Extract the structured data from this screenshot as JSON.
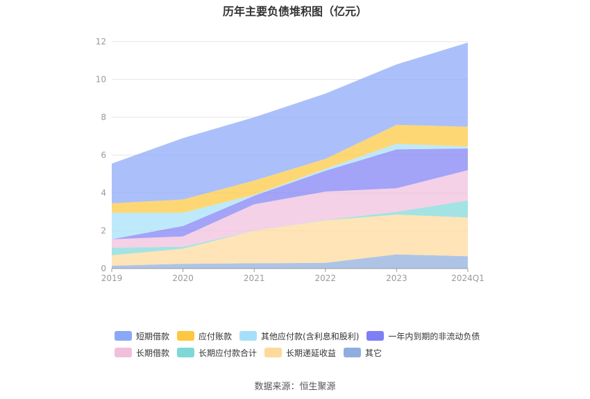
{
  "title": "历年主要负债堆积图（亿元）",
  "source": "数据来源：恒生聚源",
  "chart_data": {
    "type": "area",
    "stacked": true,
    "title": "历年主要负债堆积图（亿元）",
    "xlabel": "",
    "ylabel": "",
    "categories": [
      "2019",
      "2020",
      "2021",
      "2022",
      "2023",
      "2024Q1"
    ],
    "ylim": [
      0,
      12
    ],
    "yticks": [
      "0",
      "2",
      "4",
      "6",
      "8",
      "10",
      "12"
    ],
    "grid": true,
    "legend_position": "bottom",
    "series": [
      {
        "name": "其它",
        "color": "#8fadde",
        "values": [
          0.15,
          0.25,
          0.28,
          0.3,
          0.75,
          0.65
        ]
      },
      {
        "name": "长期递延收益",
        "color": "#fdd99b",
        "values": [
          0.55,
          0.8,
          1.72,
          2.25,
          2.1,
          2.05
        ]
      },
      {
        "name": "长期应付款合计",
        "color": "#7fd8d8",
        "values": [
          0.4,
          0.1,
          0.0,
          0.02,
          0.15,
          0.9
        ]
      },
      {
        "name": "长期借款",
        "color": "#f0bfdc",
        "values": [
          0.45,
          0.55,
          1.4,
          1.5,
          1.25,
          1.6
        ]
      },
      {
        "name": "一年内到期的非流动负债",
        "color": "#7f7ff5",
        "values": [
          0.0,
          0.55,
          0.45,
          1.1,
          2.05,
          1.15
        ]
      },
      {
        "name": "其他应付款(含利息和股利)",
        "color": "#a5e0fa",
        "values": [
          1.4,
          0.7,
          0.05,
          0.1,
          0.3,
          0.1
        ]
      },
      {
        "name": "应付账款",
        "color": "#fdc740",
        "values": [
          0.5,
          0.7,
          0.75,
          0.53,
          1.0,
          1.05
        ]
      },
      {
        "name": "短期借款",
        "color": "#8aa8f8",
        "values": [
          2.1,
          3.25,
          3.35,
          3.45,
          3.2,
          4.45
        ]
      }
    ]
  },
  "legend_rows": [
    [
      {
        "label": "短期借款",
        "color": "#8aa8f8"
      },
      {
        "label": "应付账款",
        "color": "#fdc740"
      },
      {
        "label": "其他应付款(含利息和股利)",
        "color": "#a5e0fa"
      },
      {
        "label": "一年内到期的非流动负债",
        "color": "#7f7ff5"
      }
    ],
    [
      {
        "label": "长期借款",
        "color": "#f0bfdc"
      },
      {
        "label": "长期应付款合计",
        "color": "#7fd8d8"
      },
      {
        "label": "长期递延收益",
        "color": "#fdd99b"
      },
      {
        "label": "其它",
        "color": "#8fadde"
      }
    ]
  ]
}
